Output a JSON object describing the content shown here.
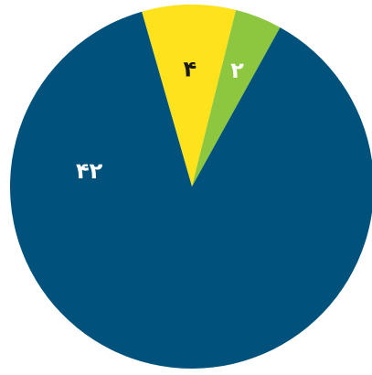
{
  "chart_data": {
    "type": "pie",
    "categories": [
      null,
      null,
      null
    ],
    "values": [
      4,
      2,
      42
    ],
    "value_labels": [
      "۴",
      "۲",
      "۴۲"
    ],
    "colors": [
      "#fde21c",
      "#8dc63f",
      "#00527c"
    ],
    "label_colors": [
      "#1a1a1a",
      "#ffffff",
      "#ffffff"
    ]
  }
}
